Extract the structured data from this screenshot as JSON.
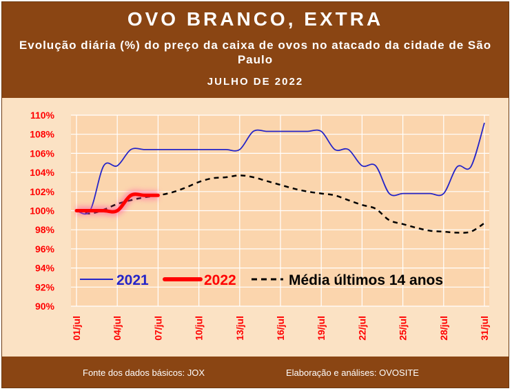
{
  "header": {
    "title": "OVO BRANCO, EXTRA",
    "subtitle": "Evolução diária (%) do preço da caixa de ovos no atacado da cidade de São Paulo",
    "period": "JULHO  DE 2022"
  },
  "footer": {
    "source": "Fonte dos dados básicos: JOX",
    "credits": "Elaboração e análises: OVOSITE"
  },
  "colors": {
    "header_bg": "#8a4513",
    "plot_bg": "#fbd5ad",
    "series_2021": "#2424c8",
    "series_2022": "#ff0000",
    "series_avg": "#000000",
    "axis_labels": "#ff0000"
  },
  "chart_data": {
    "type": "line",
    "x": [
      "01/jul",
      "02/jul",
      "03/jul",
      "04/jul",
      "05/jul",
      "06/jul",
      "07/jul",
      "08/jul",
      "09/jul",
      "10/jul",
      "11/jul",
      "12/jul",
      "13/jul",
      "14/jul",
      "15/jul",
      "16/jul",
      "17/jul",
      "18/jul",
      "19/jul",
      "20/jul",
      "21/jul",
      "22/jul",
      "23/jul",
      "24/jul",
      "25/jul",
      "26/jul",
      "27/jul",
      "28/jul",
      "29/jul",
      "30/jul",
      "31/jul"
    ],
    "xticks": [
      "01/jul",
      "04/jul",
      "07/jul",
      "10/jul",
      "13/jul",
      "16/jul",
      "19/jul",
      "22/jul",
      "25/jul",
      "28/jul",
      "31/jul"
    ],
    "yticks": [
      "90%",
      "92%",
      "94%",
      "96%",
      "98%",
      "100%",
      "102%",
      "104%",
      "106%",
      "108%",
      "110%"
    ],
    "ylim": [
      90,
      110
    ],
    "grid": true,
    "legend": "inside-bottom",
    "series": [
      {
        "name": "2021",
        "values": [
          100.0,
          100.0,
          104.7,
          104.7,
          106.4,
          106.4,
          106.4,
          106.4,
          106.4,
          106.4,
          106.4,
          106.4,
          106.4,
          108.3,
          108.3,
          108.3,
          108.3,
          108.3,
          108.3,
          106.4,
          106.4,
          104.7,
          104.7,
          101.8,
          101.8,
          101.8,
          101.8,
          101.8,
          104.6,
          104.6,
          109.2
        ]
      },
      {
        "name": "2022",
        "values": [
          100.0,
          100.0,
          100.0,
          100.0,
          101.6,
          101.6,
          101.6,
          null,
          null,
          null,
          null,
          null,
          null,
          null,
          null,
          null,
          null,
          null,
          null,
          null,
          null,
          null,
          null,
          null,
          null,
          null,
          null,
          null,
          null,
          null,
          null
        ]
      },
      {
        "name": "Média últimos 14 anos",
        "values": [
          100.0,
          99.7,
          100.1,
          100.7,
          101.1,
          101.4,
          101.6,
          101.9,
          102.4,
          103.0,
          103.4,
          103.5,
          103.7,
          103.5,
          103.1,
          102.7,
          102.3,
          102.0,
          101.8,
          101.6,
          101.1,
          100.6,
          100.2,
          99.0,
          98.6,
          98.2,
          97.9,
          97.8,
          97.7,
          97.8,
          98.7
        ]
      }
    ]
  }
}
